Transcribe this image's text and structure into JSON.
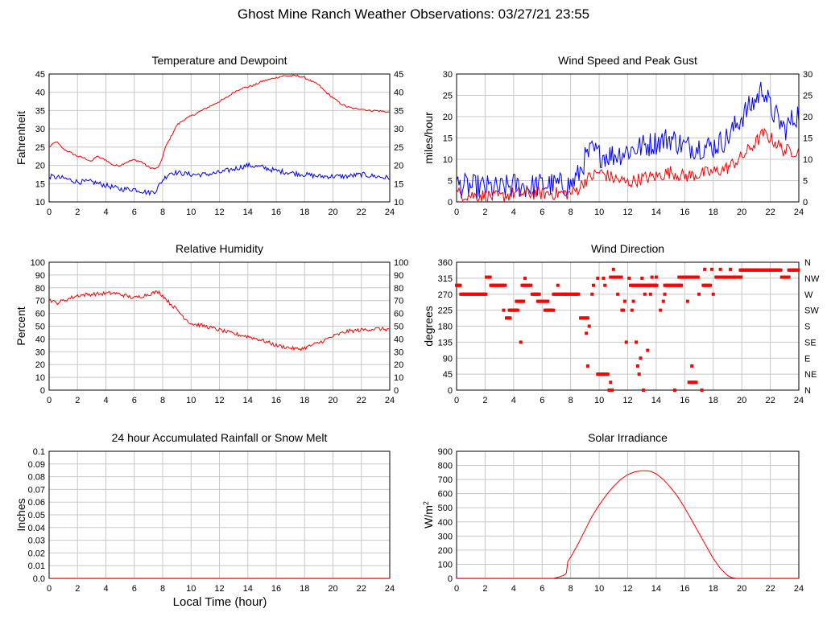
{
  "page": {
    "title": "Ghost Mine Ranch Weather Observations: 03/27/21 23:55",
    "xlabel_bottom": "Local Time (hour)"
  },
  "chart_data": [
    {
      "id": "temp",
      "type": "line",
      "title": "Temperature and Dewpoint",
      "ylabel": "Fahrenheit",
      "xlim": [
        0,
        24
      ],
      "ylim": [
        10,
        45
      ],
      "x_ticks": [
        0,
        2,
        4,
        6,
        8,
        10,
        12,
        14,
        16,
        18,
        20,
        22,
        24
      ],
      "y_ticks": [
        10,
        15,
        20,
        25,
        30,
        35,
        40,
        45
      ],
      "right_axis": true,
      "grid": true,
      "series": [
        {
          "color": "#ff0000",
          "noise": 0.25,
          "x": [
            0,
            0.5,
            1,
            1.5,
            2,
            2.5,
            3,
            3.3,
            3.6,
            4,
            4.3,
            4.6,
            5,
            5.5,
            6,
            6.5,
            7,
            7.5,
            7.8,
            8.2,
            8.6,
            9,
            9.5,
            10,
            10.5,
            11,
            11.5,
            12,
            12.5,
            13,
            13.5,
            14,
            14.5,
            15,
            15.5,
            16,
            16.5,
            17,
            17.5,
            18,
            18.5,
            19,
            19.5,
            20,
            20.5,
            21,
            21.5,
            22,
            22.5,
            23,
            23.5,
            24
          ],
          "y": [
            25,
            26.5,
            24.5,
            23.5,
            22.5,
            22,
            21,
            22.5,
            22,
            21.5,
            20.5,
            20,
            20,
            21,
            21.5,
            21,
            19.5,
            19,
            20,
            25,
            28,
            31,
            32.5,
            33.5,
            34.5,
            35.5,
            36.5,
            37.5,
            38.5,
            40,
            41,
            41.5,
            42,
            43,
            43.5,
            44,
            44.5,
            44.5,
            44.5,
            44,
            43,
            42,
            40,
            38.5,
            37,
            36,
            35.5,
            35.5,
            35,
            35,
            34.8,
            34.5
          ]
        },
        {
          "color": "#0000ff",
          "noise": 0.7,
          "x": [
            0,
            1,
            2,
            3,
            3.5,
            4,
            4.5,
            5,
            6,
            6.5,
            7,
            7.5,
            8,
            8.5,
            9,
            10,
            11,
            12,
            13,
            14,
            15,
            16,
            17,
            18,
            19,
            20,
            21,
            22,
            23,
            24
          ],
          "y": [
            17,
            16.5,
            15.5,
            15.5,
            15,
            14.5,
            14,
            13.5,
            13.5,
            13,
            12.5,
            13,
            16,
            18,
            18,
            17.5,
            17.5,
            18,
            19,
            20,
            19.5,
            18.5,
            18,
            17.5,
            17,
            17,
            17,
            17.5,
            17,
            16.5
          ]
        }
      ]
    },
    {
      "id": "wind",
      "type": "line",
      "title": "Wind Speed and Peak Gust",
      "ylabel": "miles/hour",
      "xlim": [
        0,
        24
      ],
      "ylim": [
        0,
        30
      ],
      "x_ticks": [
        0,
        2,
        4,
        6,
        8,
        10,
        12,
        14,
        16,
        18,
        20,
        22,
        24
      ],
      "y_ticks": [
        0,
        5,
        10,
        15,
        20,
        25,
        30
      ],
      "right_axis": true,
      "grid": true,
      "series": [
        {
          "color": "#0000ff",
          "noise": 3.0,
          "x": [
            0,
            1,
            2,
            3,
            4,
            5,
            6,
            7,
            8,
            8.5,
            9,
            9.5,
            10,
            11,
            12,
            13,
            14,
            15,
            16,
            17,
            18,
            19,
            20,
            21,
            21.5,
            22,
            23,
            24
          ],
          "y": [
            4,
            3.5,
            3.5,
            3,
            4,
            3.5,
            4,
            4,
            4,
            6,
            10,
            12,
            11,
            11,
            12,
            13,
            14,
            15,
            13,
            13,
            13,
            15,
            20,
            24,
            27,
            22,
            17,
            21
          ]
        },
        {
          "color": "#ff0000",
          "noise": 1.6,
          "x": [
            0,
            1,
            2,
            3,
            4,
            5,
            6,
            7,
            8,
            8.5,
            9,
            10,
            11,
            12,
            13,
            14,
            15,
            16,
            17,
            18,
            19,
            20,
            21,
            21.5,
            22,
            23,
            24
          ],
          "y": [
            2,
            1.5,
            1.5,
            1,
            2,
            2,
            2,
            2,
            2,
            3,
            5,
            7,
            5.5,
            4.5,
            5.5,
            6,
            7,
            6,
            6.5,
            7,
            8,
            10.5,
            14,
            16,
            15,
            12,
            12
          ]
        }
      ]
    },
    {
      "id": "rh",
      "type": "line",
      "title": "Relative Humidity",
      "ylabel": "Percent",
      "xlim": [
        0,
        24
      ],
      "ylim": [
        0,
        100
      ],
      "x_ticks": [
        0,
        2,
        4,
        6,
        8,
        10,
        12,
        14,
        16,
        18,
        20,
        22,
        24
      ],
      "y_ticks": [
        0,
        10,
        20,
        30,
        40,
        50,
        60,
        70,
        80,
        90,
        100
      ],
      "right_axis": true,
      "grid": true,
      "series": [
        {
          "color": "#ff0000",
          "noise": 1.5,
          "x": [
            0,
            0.5,
            1,
            1.5,
            2,
            3,
            4,
            4.5,
            5,
            6,
            7,
            7.7,
            8,
            8.5,
            9,
            9.5,
            10,
            11,
            12,
            13,
            14,
            15,
            16,
            17,
            17.5,
            18,
            19,
            20,
            21,
            22,
            23,
            24
          ],
          "y": [
            71,
            68,
            70,
            72,
            74,
            75,
            75.5,
            76,
            75,
            72,
            75,
            77,
            74,
            68,
            63,
            57,
            52,
            50,
            47,
            44,
            42,
            39,
            35,
            33,
            32,
            33,
            37,
            42,
            46,
            47,
            48,
            47.5
          ]
        }
      ]
    },
    {
      "id": "wdir",
      "type": "scatter",
      "title": "Wind Direction",
      "ylabel": "degrees",
      "xlim": [
        0,
        24
      ],
      "ylim": [
        0,
        360
      ],
      "x_ticks": [
        0,
        2,
        4,
        6,
        8,
        10,
        12,
        14,
        16,
        18,
        20,
        22,
        24
      ],
      "y_ticks": [
        0,
        45,
        90,
        135,
        180,
        225,
        270,
        315,
        360
      ],
      "right_labels": [
        "N",
        "NE",
        "E",
        "SE",
        "S",
        "SW",
        "W",
        "NW",
        "N"
      ],
      "grid": true,
      "color": "#ff0000",
      "segments": [
        {
          "x0": 0,
          "x1": 0.3,
          "y": 295
        },
        {
          "x0": 0.3,
          "x1": 2.1,
          "y": 270
        },
        {
          "x0": 2.1,
          "x1": 2.4,
          "y": 318
        },
        {
          "x0": 2.4,
          "x1": 3.4,
          "y": 295
        },
        {
          "x0": 3.5,
          "x1": 3.8,
          "y": 203
        },
        {
          "x0": 3.7,
          "x1": 4.3,
          "y": 225
        },
        {
          "x0": 4.2,
          "x1": 4.7,
          "y": 250
        },
        {
          "x0": 4.6,
          "x1": 5.1,
          "y": 295
        },
        {
          "x0": 5.3,
          "x1": 5.8,
          "y": 270
        },
        {
          "x0": 5.7,
          "x1": 6.3,
          "y": 250
        },
        {
          "x0": 6.2,
          "x1": 6.8,
          "y": 225
        },
        {
          "x0": 6.8,
          "x1": 8.6,
          "y": 270
        },
        {
          "x0": 8.7,
          "x1": 9.2,
          "y": 203
        },
        {
          "x0": 9.9,
          "x1": 10.5,
          "y": 45
        },
        {
          "x0": 10.8,
          "x1": 11.6,
          "y": 318
        },
        {
          "x0": 12.2,
          "x1": 14.1,
          "y": 295
        },
        {
          "x0": 14.6,
          "x1": 15.8,
          "y": 295
        },
        {
          "x0": 15.6,
          "x1": 17.0,
          "y": 318
        },
        {
          "x0": 16.3,
          "x1": 16.8,
          "y": 22
        },
        {
          "x0": 17.3,
          "x1": 17.8,
          "y": 295
        },
        {
          "x0": 18.2,
          "x1": 20.0,
          "y": 318
        },
        {
          "x0": 19.9,
          "x1": 20.9,
          "y": 338
        },
        {
          "x0": 20.9,
          "x1": 22.8,
          "y": 338
        },
        {
          "x0": 22.8,
          "x1": 23.3,
          "y": 318
        },
        {
          "x0": 23.3,
          "x1": 24,
          "y": 338
        }
      ],
      "points": [
        [
          3.3,
          225
        ],
        [
          4.1,
          225
        ],
        [
          4.5,
          135
        ],
        [
          4.8,
          315
        ],
        [
          5.2,
          295
        ],
        [
          5.6,
          270
        ],
        [
          6.4,
          250
        ],
        [
          7.1,
          295
        ],
        [
          7.6,
          270
        ],
        [
          8.3,
          270
        ],
        [
          9.1,
          160
        ],
        [
          9.2,
          68
        ],
        [
          9.3,
          180
        ],
        [
          9.5,
          270
        ],
        [
          9.6,
          295
        ],
        [
          9.9,
          315
        ],
        [
          10.3,
          315
        ],
        [
          10.4,
          295
        ],
        [
          10.6,
          45
        ],
        [
          10.7,
          0
        ],
        [
          10.8,
          22
        ],
        [
          10.9,
          0
        ],
        [
          11.0,
          340
        ],
        [
          11.3,
          270
        ],
        [
          11.6,
          225
        ],
        [
          11.7,
          225
        ],
        [
          11.8,
          250
        ],
        [
          11.9,
          135
        ],
        [
          12.1,
          315
        ],
        [
          12.3,
          225
        ],
        [
          12.4,
          250
        ],
        [
          12.6,
          135
        ],
        [
          12.7,
          68
        ],
        [
          12.8,
          45
        ],
        [
          12.9,
          90
        ],
        [
          13.0,
          315
        ],
        [
          13.1,
          0
        ],
        [
          13.2,
          270
        ],
        [
          13.4,
          112
        ],
        [
          13.5,
          295
        ],
        [
          13.6,
          270
        ],
        [
          13.7,
          318
        ],
        [
          13.9,
          295
        ],
        [
          14.0,
          318
        ],
        [
          14.3,
          225
        ],
        [
          14.5,
          250
        ],
        [
          14.6,
          270
        ],
        [
          15.3,
          0
        ],
        [
          15.6,
          295
        ],
        [
          15.8,
          318
        ],
        [
          16.2,
          250
        ],
        [
          16.5,
          68
        ],
        [
          17.0,
          270
        ],
        [
          17.2,
          0
        ],
        [
          17.4,
          340
        ],
        [
          17.9,
          340
        ],
        [
          18.0,
          270
        ],
        [
          18.5,
          340
        ],
        [
          19.2,
          340
        ]
      ]
    },
    {
      "id": "rain",
      "type": "line",
      "title": "24 hour Accumulated Rainfall or Snow Melt",
      "ylabel": "Inches",
      "xlim": [
        0,
        24
      ],
      "ylim": [
        0,
        0.1
      ],
      "x_ticks": [
        0,
        2,
        4,
        6,
        8,
        10,
        12,
        14,
        16,
        18,
        20,
        22,
        24
      ],
      "y_ticks": [
        0.0,
        0.01,
        0.02,
        0.03,
        0.04,
        0.05,
        0.06,
        0.07,
        0.08,
        0.09,
        0.1
      ],
      "y_tick_labels": [
        "0.0",
        "0.01",
        "0.02",
        "0.03",
        "0.04",
        "0.05",
        "0.06",
        "0.07",
        "0.08",
        "0.09",
        "0.1"
      ],
      "right_axis": false,
      "grid": true,
      "series": [
        {
          "color": "#ff0000",
          "noise": 0,
          "x": [
            0,
            24
          ],
          "y": [
            0,
            0
          ]
        }
      ]
    },
    {
      "id": "solar",
      "type": "line",
      "title": "Solar Irradiance",
      "ylabel": "W/m",
      "ylabel_superscript": "2",
      "xlim": [
        0,
        24
      ],
      "ylim": [
        0,
        900
      ],
      "x_ticks": [
        0,
        2,
        4,
        6,
        8,
        10,
        12,
        14,
        16,
        18,
        20,
        22,
        24
      ],
      "y_ticks": [
        0,
        100,
        200,
        300,
        400,
        500,
        600,
        700,
        800,
        900
      ],
      "right_axis": false,
      "grid": true,
      "series": [
        {
          "color": "#ff0000",
          "noise": 0,
          "x": [
            0,
            6.8,
            7.2,
            7.6,
            7.7,
            7.8,
            8.0,
            8.5,
            9,
            9.5,
            10,
            10.5,
            11,
            11.5,
            12,
            12.5,
            13,
            13.3,
            13.6,
            14,
            14.5,
            15,
            15.5,
            16,
            16.5,
            17,
            17.5,
            18,
            18.5,
            19,
            19.3,
            19.6,
            20,
            24
          ],
          "y": [
            0,
            0,
            10,
            25,
            40,
            120,
            150,
            240,
            340,
            440,
            520,
            590,
            650,
            700,
            735,
            755,
            762,
            762,
            758,
            740,
            700,
            645,
            580,
            500,
            410,
            320,
            230,
            140,
            70,
            20,
            5,
            0,
            0,
            0
          ]
        }
      ]
    }
  ]
}
